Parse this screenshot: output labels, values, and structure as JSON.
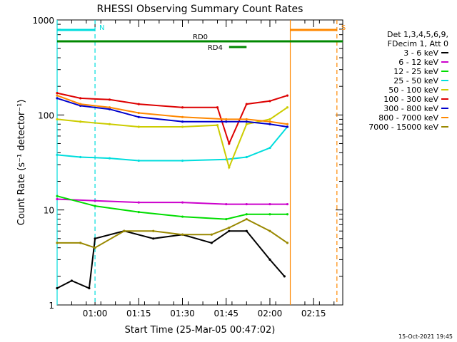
{
  "chart_data": {
    "type": "line",
    "title": "RHESSI Observing Summary Count Rates",
    "xlabel": "Start Time (25-Mar-05 00:47:02)",
    "ylabel": "Count Rate (s⁻¹ detector⁻¹)",
    "y_scale": "log",
    "ylim": [
      1,
      1000
    ],
    "y_ticks": [
      {
        "v": 1,
        "label": "1"
      },
      {
        "v": 10,
        "label": "10"
      },
      {
        "v": 100,
        "label": "100"
      },
      {
        "v": 1000,
        "label": "1000"
      }
    ],
    "x_range_minutes": [
      "00:47",
      "02:25"
    ],
    "x_ticks": [
      "01:00",
      "01:15",
      "01:30",
      "01:45",
      "02:00",
      "02:15"
    ],
    "legend_header": [
      "Det 1,3,4,5,6,9,",
      "FDecim 1, Att 0"
    ],
    "series": [
      {
        "name": "3 - 6 keV",
        "color": "#000000",
        "x": [
          "00:47",
          "00:52",
          "00:58",
          "01:00",
          "01:10",
          "01:20",
          "01:30",
          "01:40",
          "01:46",
          "01:52",
          "02:00",
          "02:05"
        ],
        "y": [
          1.5,
          1.8,
          1.5,
          5,
          6,
          5,
          5.5,
          4.5,
          6,
          6,
          3,
          2
        ]
      },
      {
        "name": "6 - 12 keV",
        "color": "#cc00cc",
        "x": [
          "00:47",
          "01:00",
          "01:15",
          "01:30",
          "01:45",
          "01:52",
          "02:00",
          "02:06"
        ],
        "y": [
          13,
          12.5,
          12,
          12,
          11.5,
          11.5,
          11.5,
          11.5
        ]
      },
      {
        "name": "12 - 25 keV",
        "color": "#00dd00",
        "x": [
          "00:47",
          "01:00",
          "01:15",
          "01:30",
          "01:45",
          "01:52",
          "02:00",
          "02:06"
        ],
        "y": [
          14,
          11,
          9.5,
          8.5,
          8,
          9,
          9,
          9
        ]
      },
      {
        "name": "25 - 50 keV",
        "color": "#00dddd",
        "x": [
          "00:47",
          "00:55",
          "01:05",
          "01:15",
          "01:30",
          "01:45",
          "01:52",
          "02:00",
          "02:06"
        ],
        "y": [
          38,
          36,
          35,
          33,
          33,
          34,
          36,
          45,
          75
        ]
      },
      {
        "name": "50 - 100 keV",
        "color": "#cccc00",
        "x": [
          "00:47",
          "00:55",
          "01:05",
          "01:15",
          "01:30",
          "01:42",
          "01:46",
          "01:52",
          "02:00",
          "02:06"
        ],
        "y": [
          90,
          85,
          80,
          75,
          75,
          78,
          28,
          80,
          90,
          120
        ]
      },
      {
        "name": "100 - 300 keV",
        "color": "#dd0000",
        "x": [
          "00:47",
          "00:55",
          "01:05",
          "01:15",
          "01:30",
          "01:42",
          "01:46",
          "01:52",
          "02:00",
          "02:06"
        ],
        "y": [
          170,
          150,
          145,
          130,
          120,
          120,
          50,
          130,
          140,
          160
        ]
      },
      {
        "name": "300 - 800 keV",
        "color": "#0000cc",
        "x": [
          "00:47",
          "00:55",
          "01:05",
          "01:15",
          "01:30",
          "01:45",
          "01:52",
          "02:00",
          "02:06"
        ],
        "y": [
          150,
          125,
          115,
          95,
          85,
          85,
          85,
          80,
          75
        ]
      },
      {
        "name": "800 - 7000 keV",
        "color": "#ff8800",
        "x": [
          "00:47",
          "00:55",
          "01:05",
          "01:15",
          "01:30",
          "01:45",
          "01:52",
          "02:00",
          "02:06"
        ],
        "y": [
          160,
          130,
          120,
          105,
          95,
          90,
          90,
          85,
          80
        ]
      },
      {
        "name": "7000 - 15000 keV",
        "color": "#998800",
        "x": [
          "00:47",
          "00:55",
          "01:00",
          "01:10",
          "01:20",
          "01:30",
          "01:40",
          "01:46",
          "01:52",
          "02:00",
          "02:06"
        ],
        "y": [
          4.5,
          4.5,
          4,
          6,
          6,
          5.5,
          5.5,
          6.5,
          8,
          6,
          4.5
        ]
      }
    ],
    "annotations": [
      {
        "label": "N",
        "color": "#00dddd",
        "type": "night",
        "start": "00:47",
        "end": "01:00"
      },
      {
        "label": "S",
        "color": "#ff8800",
        "type": "saa",
        "start": "02:07",
        "end": "02:23"
      },
      {
        "label": "RD0",
        "color": "#008800",
        "type": "bar",
        "start": "00:47",
        "end": "02:25"
      },
      {
        "label": "RD4",
        "color": "#008800",
        "type": "bar",
        "start": "01:46",
        "end": "01:52"
      }
    ],
    "grid": false,
    "legend_placement": "right"
  },
  "footer": {
    "date": "15-Oct-2021 19:45"
  },
  "colors": {
    "background": "#ffffff",
    "axes": "#000000"
  }
}
